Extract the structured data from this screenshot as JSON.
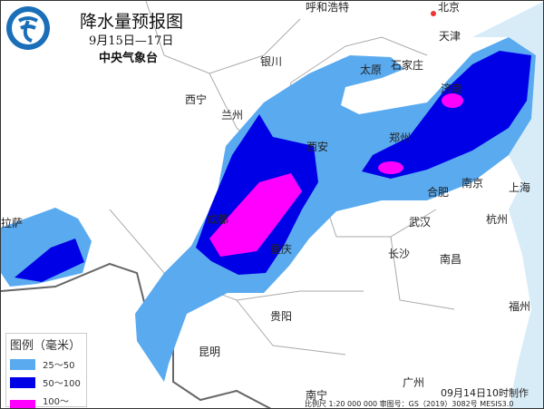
{
  "header": {
    "title": "降水量预报图",
    "date_range": "9月15日—17日",
    "organization": "中央气象台"
  },
  "legend": {
    "title": "图例（毫米）",
    "items": [
      {
        "label": "25～50",
        "color": "#5aaaf0"
      },
      {
        "label": "50～100",
        "color": "#0000e6"
      },
      {
        "label": "100～250",
        "color": "#ff00ff"
      }
    ]
  },
  "cities": [
    "呼和浩特",
    "北京",
    "天津",
    "银川",
    "太原",
    "石家庄",
    "济南",
    "西宁",
    "兰州",
    "西安",
    "郑州",
    "合肥",
    "南京",
    "上海",
    "成都",
    "武汉",
    "杭州",
    "拉萨",
    "重庆",
    "长沙",
    "南昌",
    "贵阳",
    "福州",
    "昆明",
    "南宁",
    "广州"
  ],
  "footer": {
    "made": "09月14日10时制作",
    "scale": "比例尺 1:20 000 000  审图号：GS（2019）3082号 MESIS3.0"
  },
  "colors": {
    "sea": "#d8ecf8",
    "land": "#ffffff",
    "border": "#888888"
  }
}
